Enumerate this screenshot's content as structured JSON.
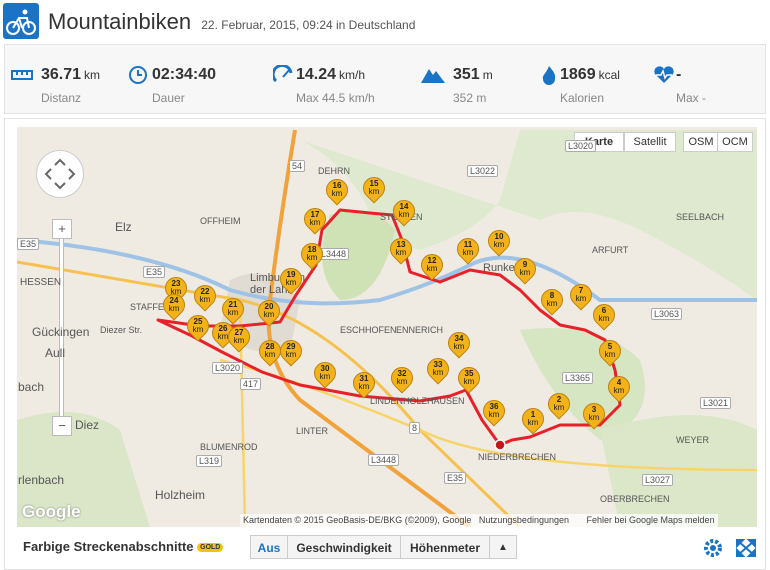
{
  "header": {
    "title": "Mountainbiken",
    "subtitle": "22. Februar, 2015, 09:24 in Deutschland"
  },
  "stats": [
    {
      "value": "36.71",
      "unit": "km",
      "label": "Distanz"
    },
    {
      "value": "02:34:40",
      "label": "Dauer"
    },
    {
      "value": "14.24",
      "unit": "km/h",
      "label": "Max 44.5 km/h"
    },
    {
      "value": "351",
      "unit": "m",
      "label": "352 m"
    },
    {
      "value": "1869",
      "unit": "kcal",
      "label": "Kalorien"
    },
    {
      "value": "-",
      "label": "Max -"
    }
  ],
  "map": {
    "types": [
      "Karte",
      "Satellit",
      "OSM",
      "OCM"
    ],
    "zoom": [
      "+",
      "−"
    ],
    "places": [
      "Elz",
      "OFFHEIM",
      "Limburg an der Lahn",
      "HESSEN",
      "STAFFEL",
      "Gückingen",
      "Aull",
      "Diez",
      "ESCHHOFEN",
      "ENNERICH",
      "DEHRN",
      "STEEDEN",
      "Runkel",
      "ARFURT",
      "SEELBACH",
      "NIEDERBRECHEN",
      "OBERBRECHEN",
      "BLUMENROD",
      "LINTER",
      "Holzheim",
      "LINDENHOLZHAUSEN",
      "WEYER",
      "rlenbach",
      "Diezer Str.",
      "bach"
    ],
    "roads": [
      "L3020",
      "L3022",
      "54",
      "L3448",
      "E35",
      "E35",
      "417",
      "8",
      "E35",
      "L3063",
      "L3365",
      "L3021",
      "L3027",
      "L3448",
      "L319",
      "L3020"
    ],
    "markers": [
      {
        "n": "1",
        "unit": "km"
      },
      {
        "n": "2",
        "unit": "km"
      },
      {
        "n": "3",
        "unit": "km"
      },
      {
        "n": "4",
        "unit": "km"
      },
      {
        "n": "5",
        "unit": "km"
      },
      {
        "n": "6",
        "unit": "km"
      },
      {
        "n": "7",
        "unit": "km"
      },
      {
        "n": "8",
        "unit": "km"
      },
      {
        "n": "9",
        "unit": "km"
      },
      {
        "n": "10",
        "unit": "km"
      },
      {
        "n": "11",
        "unit": "km"
      },
      {
        "n": "12",
        "unit": "km"
      },
      {
        "n": "13",
        "unit": "km"
      },
      {
        "n": "14",
        "unit": "km"
      },
      {
        "n": "15",
        "unit": "km"
      },
      {
        "n": "16",
        "unit": "km"
      },
      {
        "n": "17",
        "unit": "km"
      },
      {
        "n": "18",
        "unit": "km"
      },
      {
        "n": "19",
        "unit": "km"
      },
      {
        "n": "20",
        "unit": "km"
      },
      {
        "n": "21",
        "unit": "km"
      },
      {
        "n": "22",
        "unit": "km"
      },
      {
        "n": "23",
        "unit": "km"
      },
      {
        "n": "24",
        "unit": "km"
      },
      {
        "n": "25",
        "unit": "km"
      },
      {
        "n": "26",
        "unit": "km"
      },
      {
        "n": "27",
        "unit": "km"
      },
      {
        "n": "28",
        "unit": "km"
      },
      {
        "n": "29",
        "unit": "km"
      },
      {
        "n": "30",
        "unit": "km"
      },
      {
        "n": "31",
        "unit": "km"
      },
      {
        "n": "32",
        "unit": "km"
      },
      {
        "n": "33",
        "unit": "km"
      },
      {
        "n": "34",
        "unit": "km"
      },
      {
        "n": "35",
        "unit": "km"
      },
      {
        "n": "36",
        "unit": "km"
      }
    ],
    "logo": "Google",
    "attribution": "Kartendaten © 2015 GeoBasis-DE/BKG (©2009), Google",
    "terms": "Nutzungsbedingungen",
    "report": "Fehler bei Google Maps melden"
  },
  "footer": {
    "title": "Farbige Streckenabschnitte",
    "badge": "GOLD",
    "options": [
      "Aus",
      "Geschwindigkeit",
      "Höhenmeter"
    ],
    "toggle": "▲"
  }
}
